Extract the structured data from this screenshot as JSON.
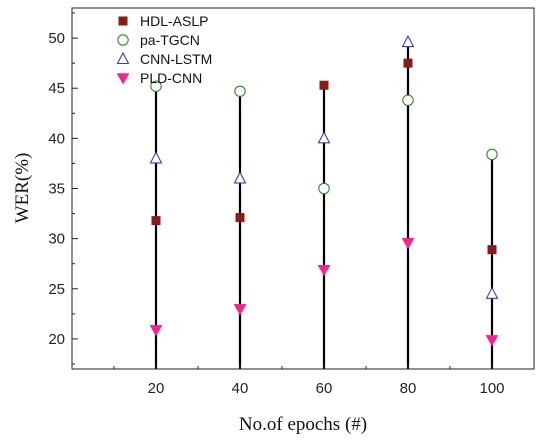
{
  "chart_data": {
    "type": "scatter",
    "title": "",
    "xlabel": "No.of epochs (#)",
    "ylabel": "WER(%)",
    "x": [
      20,
      40,
      60,
      80,
      100
    ],
    "xlim": [
      0,
      110
    ],
    "ylim": [
      17,
      53
    ],
    "xticks": [
      20,
      40,
      60,
      80,
      100
    ],
    "yticks": [
      20,
      25,
      30,
      35,
      40,
      45,
      50
    ],
    "grid": false,
    "legend_position": "top-left",
    "vertical_stems": true,
    "series": [
      {
        "name": "HDL-ASLP",
        "values": [
          31.8,
          32.1,
          45.3,
          47.5,
          28.9
        ],
        "marker": "square",
        "color": "#8b1a1a"
      },
      {
        "name": "pa-TGCN",
        "values": [
          45.2,
          44.7,
          35.0,
          43.8,
          38.4
        ],
        "marker": "circle",
        "color": "#2e8b2e"
      },
      {
        "name": "CNN-LSTM",
        "values": [
          38.0,
          36.0,
          40.0,
          49.6,
          24.5
        ],
        "marker": "triangle-up",
        "color": "#3a3ad0"
      },
      {
        "name": "PLD-CNN",
        "values": [
          20.9,
          23.0,
          26.9,
          29.6,
          19.9
        ],
        "marker": "triangle-down",
        "color": "#ff1f8e"
      }
    ]
  }
}
